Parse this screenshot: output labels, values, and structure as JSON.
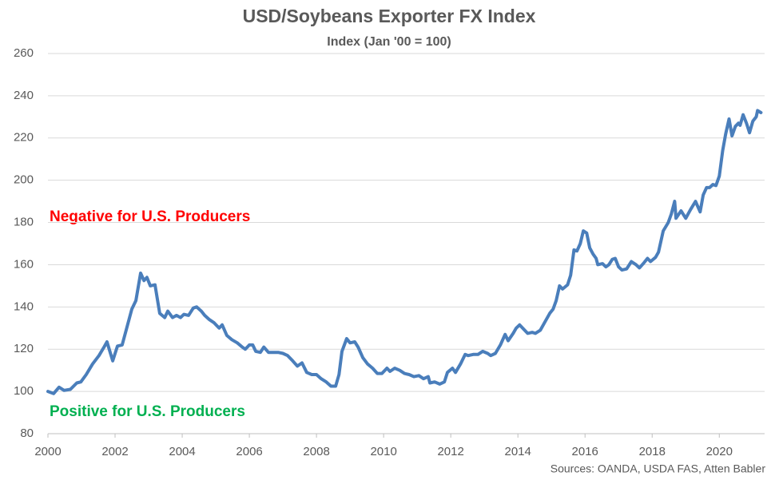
{
  "chart_data": {
    "type": "line",
    "title": "USD/Soybeans Exporter FX Index",
    "subtitle": "Index (Jan '00 = 100)",
    "annotations": [
      "Negative for U.S. Producers",
      "Positive for U.S. Producers"
    ],
    "source": "Sources: OANDA, USDA FAS, Atten Babler",
    "xlim": [
      2000,
      2021.35
    ],
    "xticks": [
      2000,
      2002,
      2004,
      2006,
      2008,
      2010,
      2012,
      2014,
      2016,
      2018,
      2020
    ],
    "ylim": [
      80,
      260
    ],
    "yticks": [
      80,
      100,
      120,
      140,
      160,
      180,
      200,
      220,
      240,
      260
    ],
    "grid": true,
    "x": [
      2000,
      2000.17,
      2000.33,
      2000.48,
      2000.67,
      2000.86,
      2000.98,
      2001.14,
      2001.33,
      2001.52,
      2001.67,
      2001.76,
      2001.93,
      2002.07,
      2002.21,
      2002.33,
      2002.5,
      2002.62,
      2002.76,
      2002.86,
      2002.95,
      2003.05,
      2003.19,
      2003.33,
      2003.48,
      2003.57,
      2003.71,
      2003.83,
      2003.95,
      2004.05,
      2004.19,
      2004.33,
      2004.43,
      2004.57,
      2004.67,
      2004.81,
      2004.95,
      2005.1,
      2005.19,
      2005.33,
      2005.48,
      2005.64,
      2005.79,
      2005.88,
      2006.0,
      2006.1,
      2006.19,
      2006.33,
      2006.43,
      2006.57,
      2006.71,
      2006.86,
      2007.0,
      2007.14,
      2007.29,
      2007.43,
      2007.57,
      2007.71,
      2007.86,
      2008.0,
      2008.14,
      2008.29,
      2008.43,
      2008.57,
      2008.67,
      2008.76,
      2008.9,
      2009.0,
      2009.14,
      2009.24,
      2009.38,
      2009.52,
      2009.67,
      2009.81,
      2009.95,
      2010.1,
      2010.19,
      2010.33,
      2010.48,
      2010.62,
      2010.76,
      2010.9,
      2011.05,
      2011.19,
      2011.33,
      2011.38,
      2011.52,
      2011.67,
      2011.81,
      2011.9,
      2012.05,
      2012.14,
      2012.29,
      2012.43,
      2012.52,
      2012.67,
      2012.81,
      2012.95,
      2013.1,
      2013.19,
      2013.33,
      2013.48,
      2013.62,
      2013.71,
      2013.86,
      2013.95,
      2014.05,
      2014.14,
      2014.29,
      2014.43,
      2014.52,
      2014.67,
      2014.81,
      2014.95,
      2015.05,
      2015.14,
      2015.24,
      2015.33,
      2015.48,
      2015.57,
      2015.67,
      2015.76,
      2015.86,
      2015.95,
      2016.05,
      2016.14,
      2016.24,
      2016.33,
      2016.38,
      2016.52,
      2016.62,
      2016.71,
      2016.81,
      2016.9,
      2017.0,
      2017.1,
      2017.24,
      2017.38,
      2017.52,
      2017.62,
      2017.76,
      2017.86,
      2017.95,
      2018.1,
      2018.19,
      2018.33,
      2018.48,
      2018.57,
      2018.67,
      2018.71,
      2018.86,
      2019.0,
      2019.14,
      2019.29,
      2019.43,
      2019.52,
      2019.62,
      2019.71,
      2019.81,
      2019.9,
      2020.0,
      2020.1,
      2020.19,
      2020.29,
      2020.38,
      2020.48,
      2020.57,
      2020.62,
      2020.71,
      2020.81,
      2020.9,
      2021.0,
      2021.1,
      2021.14,
      2021.24
    ],
    "series": [
      {
        "name": "USD/Soybeans Exporter FX Index",
        "color": "#4a7ebb",
        "values": [
          100,
          99,
          102,
          100.5,
          101,
          104,
          104.5,
          108,
          113,
          117,
          121,
          123.5,
          114.5,
          121.5,
          122,
          129,
          139,
          143,
          156,
          152.5,
          154,
          150,
          150.5,
          137,
          135,
          138,
          135,
          136,
          135,
          136.5,
          136,
          139.5,
          140,
          138,
          136,
          134,
          132.5,
          130,
          131.5,
          126.5,
          124.5,
          123,
          121,
          120,
          122,
          122,
          119,
          118.5,
          121,
          118.5,
          118.5,
          118.5,
          118,
          117,
          114.5,
          112,
          113.5,
          109,
          108,
          108,
          106,
          104.5,
          102.5,
          102.5,
          108,
          119,
          125,
          123,
          123.5,
          121,
          116,
          113,
          111,
          108.5,
          108.5,
          111,
          109.5,
          111,
          110,
          108.5,
          108,
          107,
          107.5,
          106,
          107,
          104,
          104.5,
          103.5,
          104.5,
          109,
          111,
          109,
          113,
          117.5,
          117,
          117.5,
          117.5,
          119,
          118,
          117,
          118,
          122,
          127,
          124,
          127.5,
          130,
          131.5,
          130,
          127.5,
          128,
          127.5,
          129,
          133,
          137,
          139,
          143,
          150,
          148.5,
          150.5,
          155,
          167,
          166.5,
          170,
          176,
          175,
          168,
          165,
          163,
          160,
          160.5,
          159,
          160,
          162.5,
          163,
          159,
          157.5,
          158,
          161.5,
          160,
          158.5,
          161,
          163,
          161.5,
          163.5,
          166,
          176,
          180,
          184,
          190,
          182,
          185.5,
          182,
          186,
          190,
          185,
          193,
          196.5,
          196.5,
          198,
          197.5,
          202,
          214,
          222,
          229,
          221,
          225.5,
          227,
          226,
          231,
          227,
          222.5,
          228,
          230,
          233,
          232
        ]
      }
    ]
  }
}
